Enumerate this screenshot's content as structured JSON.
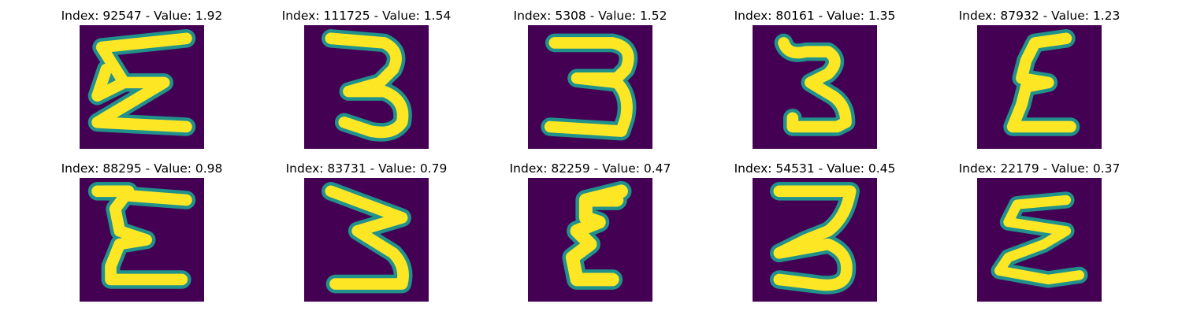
{
  "colormap": {
    "background": "#440154",
    "edge": "#21918c",
    "mid": "#5ec962",
    "core": "#fde725"
  },
  "panels": [
    {
      "title": "Index: 92547 - Value: 1.92",
      "glyph": "sigma-like-3-wide"
    },
    {
      "title": "Index: 111725 - Value: 1.54",
      "glyph": "digit-3-round"
    },
    {
      "title": "Index: 5308 - Value: 1.52",
      "glyph": "digit-3-flat"
    },
    {
      "title": "Index: 80161 - Value: 1.35",
      "glyph": "digit-3-narrow"
    },
    {
      "title": "Index: 87932 - Value: 1.23",
      "glyph": "epsilon-like-3"
    },
    {
      "title": "Index: 88295 - Value: 0.98",
      "glyph": "epsilon-like-3-bold"
    },
    {
      "title": "Index: 83731 - Value: 0.79",
      "glyph": "digit-3-slanted"
    },
    {
      "title": "Index: 82259 - Value: 0.47",
      "glyph": "epsilon-like-3-thin"
    },
    {
      "title": "Index: 54531 - Value: 0.45",
      "glyph": "digit-3-tall"
    },
    {
      "title": "Index: 22179 - Value: 0.37",
      "glyph": "zigzag-3"
    }
  ]
}
